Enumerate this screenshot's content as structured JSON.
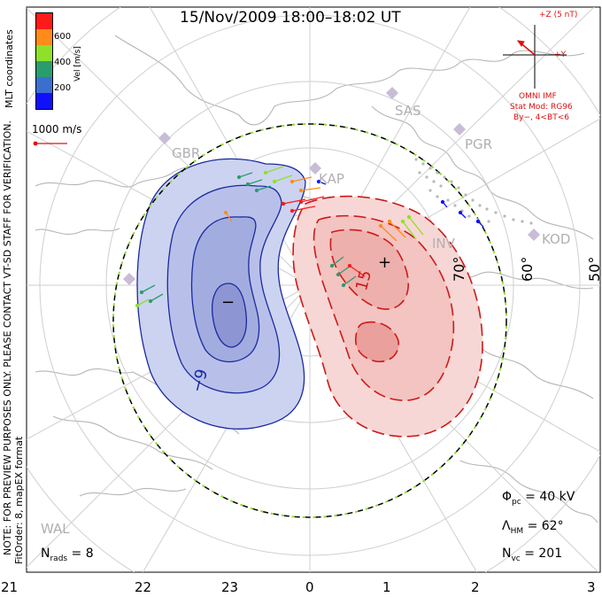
{
  "title": "15/Nov/2009  18:00–18:02  UT",
  "colorbar": {
    "unit_label": "Vel [m/s]",
    "ticks": [
      "600",
      "400",
      "200"
    ],
    "colors": [
      "#ff1a1a",
      "#ff8c1a",
      "#8ee02a",
      "#2a9d6e",
      "#3a6fd0",
      "#1010ff"
    ]
  },
  "coord_label": "MLT coordinates",
  "scale_vector_label": "1000 m/s",
  "side_note": "NOTE: FOR PREVIEW PURPOSES ONLY. PLEASE CONTACT VT-SD STAFF FOR VERIFICATION.",
  "fit_order": "FitOrder: 8, mapEX format",
  "imf": {
    "z_label": "+Z (5 nT)",
    "y_label": "+Y",
    "source": "OMNI IMF",
    "stat_mod": "Stat Mod: RG96",
    "condition": "By−, 4<BT<6"
  },
  "stations": [
    {
      "code": "SAS"
    },
    {
      "code": "PGR"
    },
    {
      "code": "GBR"
    },
    {
      "code": "KAP"
    },
    {
      "code": "INV"
    },
    {
      "code": "KOD"
    },
    {
      "code": "WAL"
    }
  ],
  "lat_labels": [
    "70°",
    "60°",
    "50°"
  ],
  "contour_labels": [
    "−9",
    "15"
  ],
  "extrema": {
    "min_symbol": "−",
    "max_symbol": "+"
  },
  "stats": {
    "phi_pc": "Φ",
    "phi_pc_sub": "pc",
    "phi_pc_value": " = 40 kV",
    "lambda_hm": "Λ",
    "lambda_hm_sub": "HM",
    "lambda_hm_value": " = 62°",
    "n_vc": "N",
    "n_vc_sub": "vc",
    "n_vc_value": " = 201",
    "n_rads": "N",
    "n_rads_sub": "rads",
    "n_rads_value": " = 8"
  },
  "mlt_ticks": [
    "21",
    "22",
    "23",
    "0",
    "1",
    "2",
    "3"
  ]
}
